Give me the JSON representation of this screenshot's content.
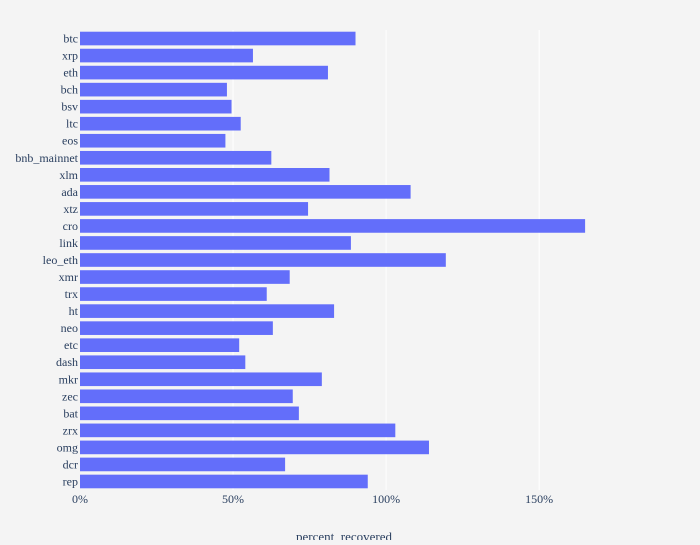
{
  "chart_data": {
    "type": "bar",
    "orientation": "horizontal",
    "title": "",
    "xlabel": "percent_recovered",
    "ylabel": "",
    "categories": [
      "btc",
      "xrp",
      "eth",
      "bch",
      "bsv",
      "ltc",
      "eos",
      "bnb_mainnet",
      "xlm",
      "ada",
      "xtz",
      "cro",
      "link",
      "leo_eth",
      "xmr",
      "trx",
      "ht",
      "neo",
      "etc",
      "dash",
      "mkr",
      "zec",
      "bat",
      "zrx",
      "omg",
      "dcr",
      "rep"
    ],
    "values": [
      0.9,
      0.565,
      0.81,
      0.48,
      0.495,
      0.525,
      0.475,
      0.625,
      0.815,
      1.08,
      0.745,
      1.65,
      0.885,
      1.195,
      0.685,
      0.61,
      0.83,
      0.63,
      0.52,
      0.54,
      0.79,
      0.695,
      0.715,
      1.03,
      1.14,
      0.67,
      0.94
    ],
    "xlim": [
      0,
      1.96
    ],
    "x_ticks": [
      0,
      0.5,
      1.0,
      1.5
    ],
    "x_tick_labels": [
      "0%",
      "50%",
      "100%",
      "150%"
    ],
    "x_tick_format": "percent",
    "grid": true,
    "legend": "none",
    "colors": {
      "bar": "#636efa",
      "plot_background": "#f4f4f4",
      "gridline": "#ffffff",
      "text": "#2a3f5f"
    }
  }
}
